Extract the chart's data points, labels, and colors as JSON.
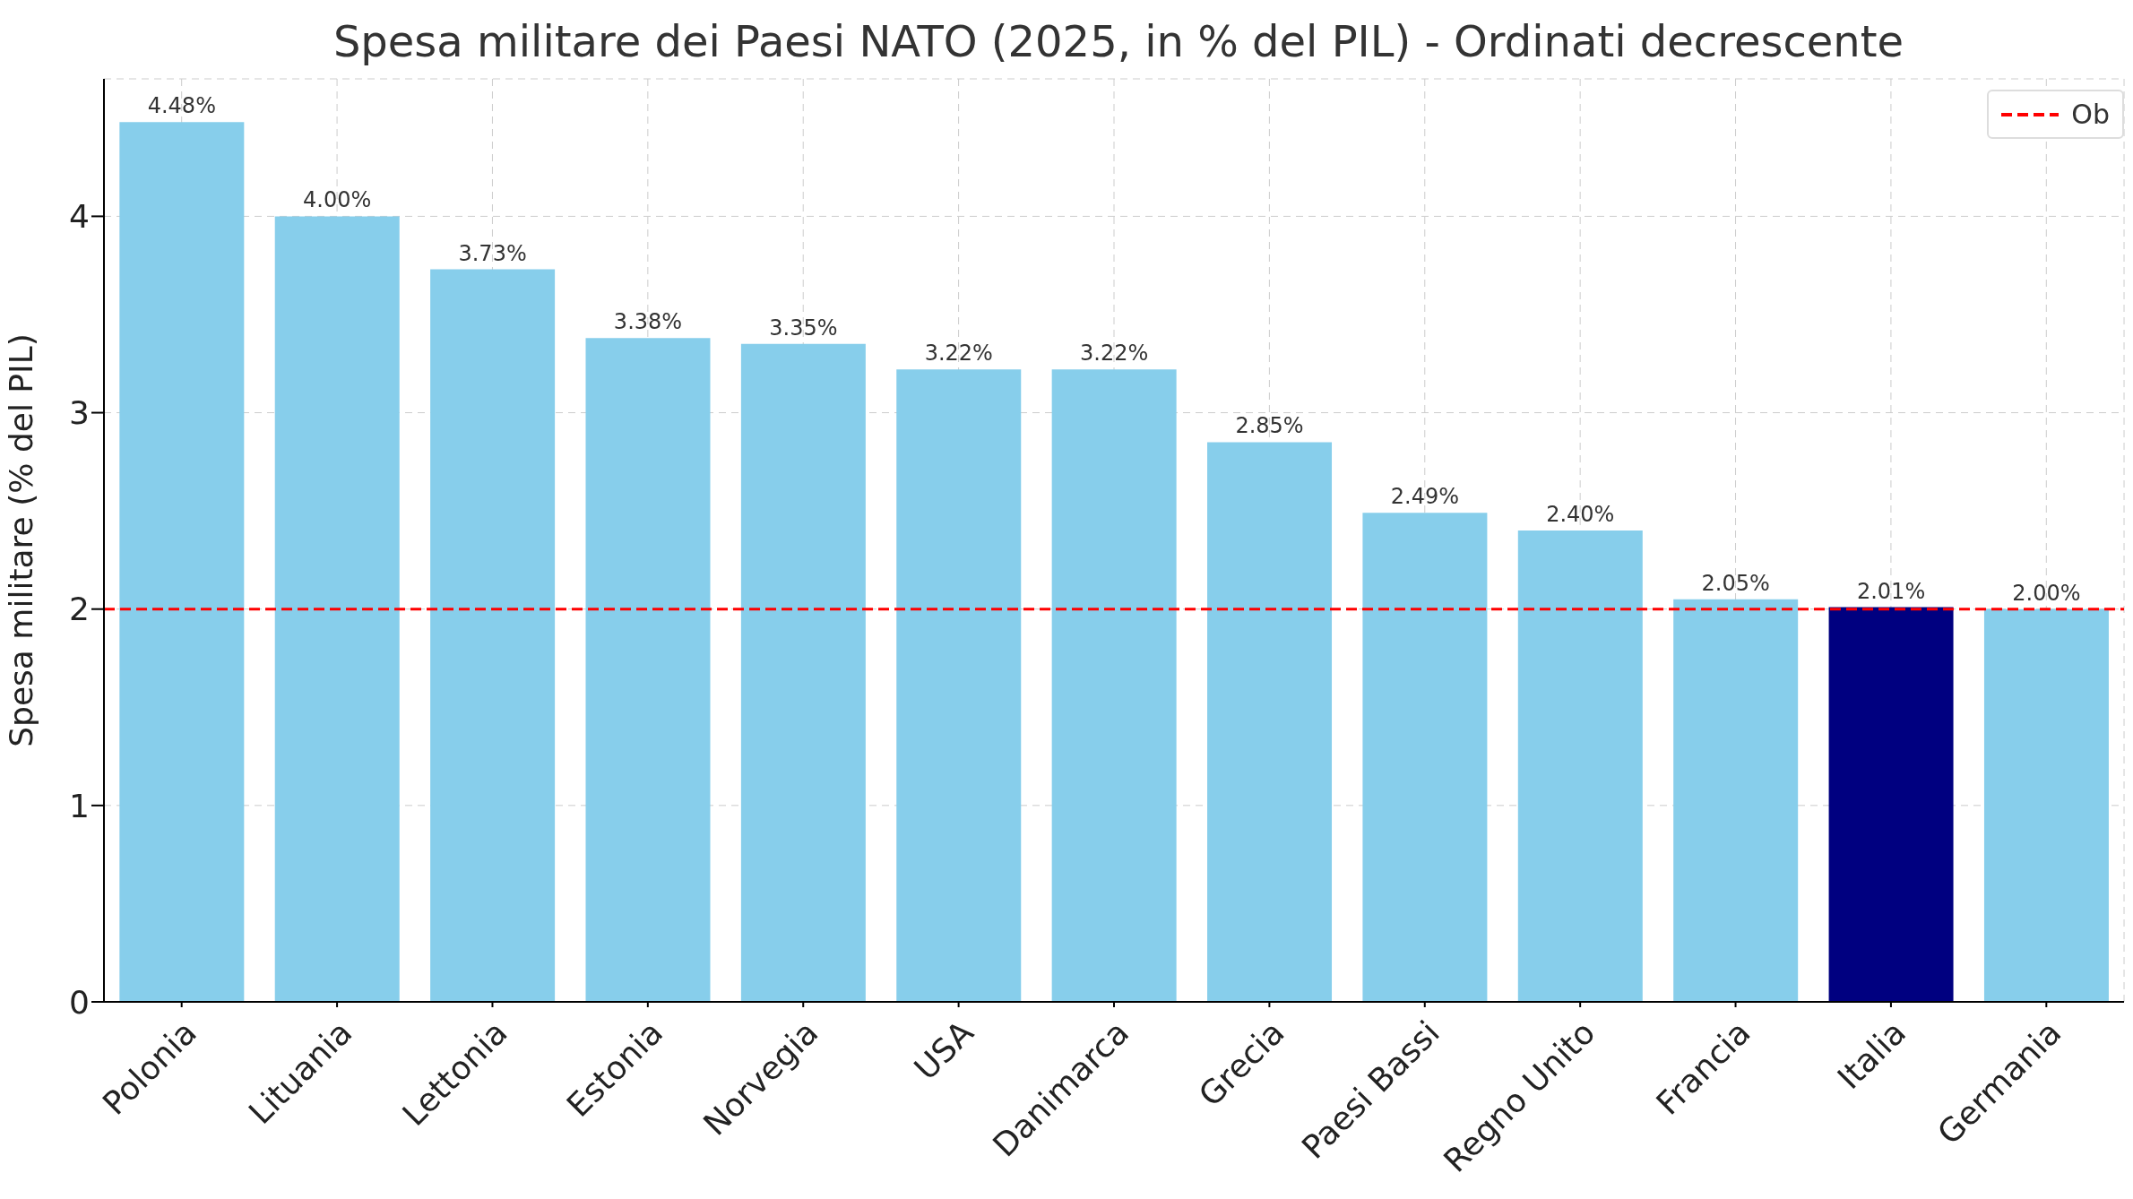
{
  "chart_data": {
    "type": "bar",
    "title": "Spesa militare dei Paesi NATO (2025, in % del PIL) - Ordinati decrescente",
    "ylabel": "Spesa militare (% del PIL)",
    "categories": [
      "Polonia",
      "Lituania",
      "Lettonia",
      "Estonia",
      "Norvegia",
      "USA",
      "Danimarca",
      "Grecia",
      "Paesi Bassi",
      "Regno Unito",
      "Francia",
      "Italia",
      "Germania"
    ],
    "values": [
      4.48,
      4.0,
      3.73,
      3.38,
      3.35,
      3.22,
      3.22,
      2.85,
      2.49,
      2.4,
      2.05,
      2.01,
      2.0
    ],
    "colors": [
      "#87ceeb",
      "#87ceeb",
      "#87ceeb",
      "#87ceeb",
      "#87ceeb",
      "#87ceeb",
      "#87ceeb",
      "#87ceeb",
      "#87ceeb",
      "#87ceeb",
      "#87ceeb",
      "#000080",
      "#87ceeb"
    ],
    "value_labels": [
      "4.48%",
      "4.00%",
      "3.73%",
      "3.38%",
      "3.35%",
      "3.22%",
      "3.22%",
      "2.85%",
      "2.49%",
      "2.40%",
      "2.05%",
      "2.01%",
      "2.00%"
    ],
    "ylim": [
      0,
      4.7
    ],
    "yticks": [
      0,
      1,
      2,
      3,
      4
    ],
    "grid": true,
    "legend": "top right",
    "ref_lines": [
      {
        "axis": "y",
        "value": 2,
        "label": "Ob",
        "color": "#ff0000",
        "line_style": "dashed"
      }
    ]
  }
}
